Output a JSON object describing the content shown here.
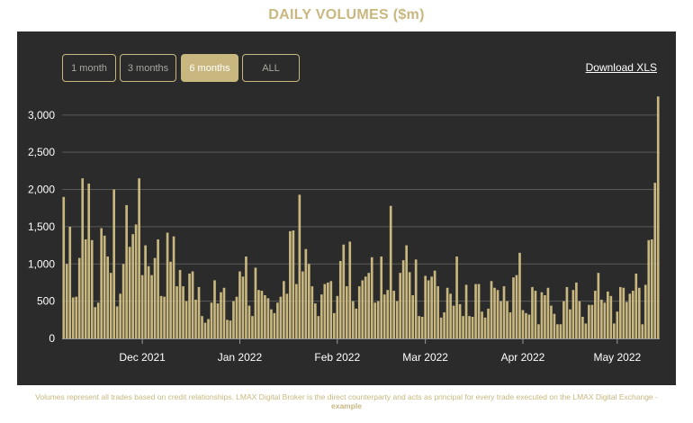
{
  "title": "DAILY VOLUMES ($m)",
  "range_buttons": [
    {
      "label": "1 month",
      "active": false
    },
    {
      "label": "3 months",
      "active": false
    },
    {
      "label": "6 months",
      "active": true
    },
    {
      "label": "ALL",
      "active": false
    }
  ],
  "download_label": "Download XLS",
  "footer": {
    "text": "Volumes represent all trades based on credit relationships. LMAX Digital Broker is the direct counterparty and acts as principal for every trade executed on the LMAX Digital Exchange -",
    "bold": "example"
  },
  "colors": {
    "bar": "#c8b77e",
    "panel": "#2b2b2b",
    "accent": "#c8b77e"
  },
  "chart_data": {
    "type": "bar",
    "title": "DAILY VOLUMES ($m)",
    "ylim": [
      0,
      3300
    ],
    "yticks": [
      0,
      500,
      1000,
      1500,
      2000,
      2500,
      3000
    ],
    "ytick_labels": [
      "0",
      "500",
      "1,000",
      "1,500",
      "2,000",
      "2,500",
      "3,000"
    ],
    "x_ticks": [
      {
        "label": "Dec 2021",
        "index": 25
      },
      {
        "label": "Jan 2022",
        "index": 56
      },
      {
        "label": "Feb 2022",
        "index": 87
      },
      {
        "label": "Mar 2022",
        "index": 115
      },
      {
        "label": "Apr 2022",
        "index": 146
      },
      {
        "label": "May 2022",
        "index": 176
      }
    ],
    "grid": true,
    "values": [
      1900,
      1000,
      1500,
      550,
      560,
      1080,
      2150,
      1330,
      2080,
      1320,
      420,
      480,
      1480,
      1380,
      1100,
      880,
      2000,
      430,
      600,
      1000,
      1790,
      1230,
      1400,
      1530,
      2150,
      850,
      1250,
      970,
      850,
      1080,
      1330,
      570,
      560,
      1420,
      1030,
      1370,
      700,
      920,
      700,
      500,
      870,
      900,
      520,
      690,
      300,
      210,
      260,
      480,
      780,
      470,
      620,
      680,
      250,
      240,
      500,
      560,
      900,
      830,
      1100,
      440,
      300,
      950,
      650,
      640,
      580,
      540,
      390,
      340,
      480,
      560,
      770,
      600,
      1440,
      1450,
      730,
      1930,
      900,
      1200,
      1000,
      700,
      470,
      300,
      590,
      730,
      750,
      770,
      340,
      570,
      1040,
      1260,
      700,
      1300,
      500,
      400,
      700,
      780,
      830,
      880,
      1090,
      480,
      500,
      1100,
      590,
      650,
      1780,
      640,
      500,
      880,
      1050,
      1250,
      890,
      580,
      1060,
      300,
      290,
      840,
      780,
      830,
      910,
      700,
      280,
      350,
      680,
      600,
      440,
      1100,
      460,
      300,
      720,
      300,
      290,
      730,
      730,
      360,
      280,
      400,
      770,
      680,
      650,
      500,
      700,
      500,
      350,
      820,
      850,
      1150,
      380,
      340,
      320,
      690,
      640,
      190,
      620,
      580,
      680,
      440,
      330,
      190,
      190,
      500,
      690,
      390,
      650,
      750,
      500,
      290,
      200,
      450,
      450,
      640,
      880,
      520,
      480,
      630,
      570,
      200,
      360,
      690,
      680,
      490,
      600,
      640,
      870,
      680,
      190,
      720,
      1320,
      1330,
      2090,
      3250
    ]
  }
}
